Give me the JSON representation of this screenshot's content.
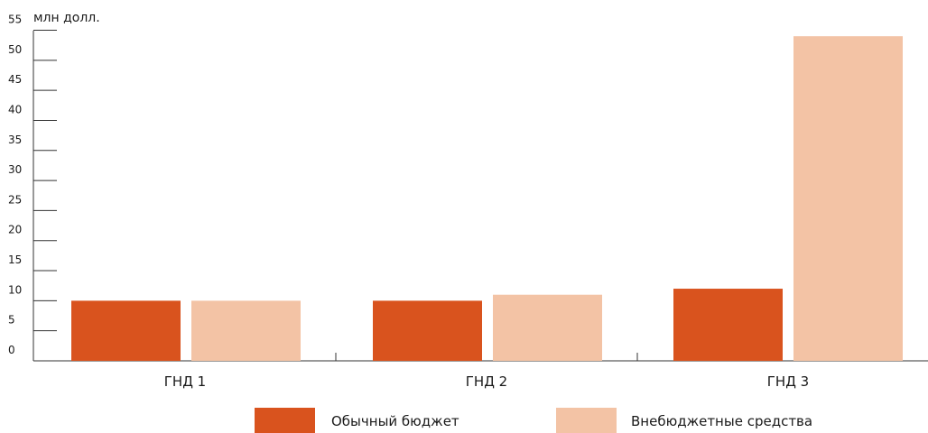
{
  "chart_data": {
    "type": "bar",
    "unit_label": "млн долл.",
    "categories": [
      "ГНД 1",
      "ГНД 2",
      "ГНД 3"
    ],
    "series": [
      {
        "name": "Обычный бюджет",
        "values": [
          10,
          10,
          12
        ],
        "color": "#D9531E"
      },
      {
        "name": "Внебюджетные средства",
        "values": [
          10,
          11,
          54
        ],
        "color": "#F3C3A5"
      }
    ],
    "y_ticks": [
      "0",
      "5",
      "10",
      "15",
      "20",
      "25",
      "30",
      "35",
      "40",
      "45",
      "50",
      "55"
    ],
    "ylim": [
      0,
      55
    ],
    "grid": false,
    "legend_position": "bottom"
  }
}
